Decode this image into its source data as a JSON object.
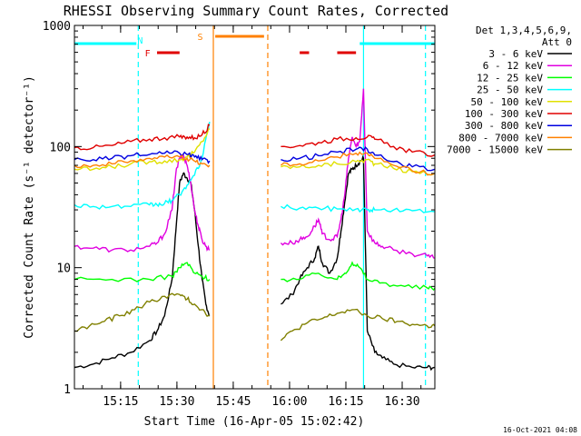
{
  "chart_data": {
    "type": "line",
    "title": "RHESSI Observing Summary Count Rates, Corrected",
    "xlabel": "Start Time (16-Apr-05 15:02:42)",
    "ylabel": "Corrected Count Rate (s⁻¹ detector⁻¹)",
    "yscale": "log",
    "ylim": [
      1,
      1000
    ],
    "xlim_minutes": [
      0,
      96
    ],
    "x_ticks": [
      {
        "minute": 12.3,
        "label": "15:15"
      },
      {
        "minute": 27.3,
        "label": "15:30"
      },
      {
        "minute": 42.3,
        "label": "15:45"
      },
      {
        "minute": 57.3,
        "label": "16:00"
      },
      {
        "minute": 72.3,
        "label": "16:15"
      },
      {
        "minute": 87.3,
        "label": "16:30"
      }
    ],
    "y_ticks": [
      {
        "value": 1,
        "label": "1"
      },
      {
        "value": 10,
        "label": "10"
      },
      {
        "value": 100,
        "label": "100"
      },
      {
        "value": 1000,
        "label": "1000"
      }
    ],
    "legend_header": "Det 1,3,4,5,6,9,",
    "legend_header2": "Att 0",
    "legend_position": "right",
    "series": [
      {
        "name": "3 - 6 keV",
        "color": "#000000",
        "x": [
          0,
          5,
          10,
          15,
          20,
          22,
          24,
          26,
          27,
          28,
          29,
          30,
          31,
          32,
          33,
          34,
          35,
          36,
          55,
          58,
          60,
          62,
          64,
          65,
          66,
          68,
          70,
          71,
          72,
          73,
          74,
          75,
          76,
          77,
          78,
          80,
          82,
          85,
          90,
          94,
          96
        ],
        "y": [
          1.5,
          1.6,
          1.8,
          2.0,
          2.5,
          3,
          4,
          8,
          20,
          50,
          60,
          55,
          50,
          30,
          15,
          8,
          5,
          4,
          5,
          6,
          8,
          10,
          12,
          15,
          11,
          9,
          12,
          20,
          35,
          60,
          65,
          70,
          75,
          80,
          3,
          2,
          1.8,
          1.6,
          1.5,
          1.5,
          1.5
        ]
      },
      {
        "name": "6 - 12 keV",
        "color": "#e000e0",
        "x": [
          0,
          5,
          10,
          15,
          20,
          22,
          24,
          26,
          27,
          28,
          29,
          30,
          31,
          32,
          33,
          34,
          35,
          36,
          55,
          58,
          60,
          62,
          64,
          65,
          66,
          68,
          70,
          71,
          72,
          73,
          74,
          75,
          76,
          77,
          78,
          80,
          82,
          85,
          90,
          94,
          96
        ],
        "y": [
          15,
          14.5,
          14,
          14,
          15,
          16,
          19,
          30,
          60,
          80,
          85,
          70,
          50,
          30,
          22,
          17,
          15,
          14,
          16,
          16,
          17,
          18,
          22,
          25,
          19,
          17,
          18,
          25,
          40,
          80,
          120,
          100,
          110,
          300,
          20,
          16,
          15,
          14,
          13,
          12.5,
          12
        ]
      },
      {
        "name": "12 - 25 keV",
        "color": "#00ff00",
        "x": [
          0,
          10,
          20,
          26,
          28,
          30,
          32,
          34,
          36,
          55,
          60,
          65,
          70,
          72,
          74,
          76,
          78,
          82,
          88,
          94,
          96
        ],
        "y": [
          8,
          8,
          8,
          8.5,
          10,
          11,
          9,
          8.5,
          8,
          8,
          8,
          9,
          8,
          9,
          11,
          10,
          8,
          7.5,
          7,
          6.8,
          6.8
        ]
      },
      {
        "name": "25 - 50 keV",
        "color": "#00ffff",
        "x": [
          0,
          5,
          10,
          15,
          20,
          22,
          24,
          26,
          28,
          30,
          32,
          34,
          36,
          55,
          60,
          65,
          70,
          75,
          78,
          80,
          85,
          90,
          96
        ],
        "y": [
          33,
          32,
          32,
          32,
          33,
          33,
          34,
          36,
          40,
          48,
          58,
          80,
          160,
          32,
          31,
          31,
          30.5,
          30.5,
          30,
          30,
          30,
          29.5,
          29
        ]
      },
      {
        "name": "50 - 100 keV",
        "color": "#e0e000",
        "x": [
          0,
          5,
          10,
          15,
          20,
          24,
          28,
          30,
          32,
          34,
          36,
          55,
          60,
          65,
          70,
          75,
          78,
          80,
          85,
          90,
          96
        ],
        "y": [
          65,
          65,
          68,
          72,
          75,
          76,
          78,
          82,
          90,
          110,
          140,
          68,
          68,
          70,
          72,
          75,
          78,
          72,
          66,
          62,
          60
        ]
      },
      {
        "name": "100 - 300 keV",
        "color": "#e00000",
        "x": [
          0,
          5,
          10,
          15,
          20,
          24,
          28,
          30,
          32,
          34,
          36,
          55,
          60,
          65,
          70,
          75,
          78,
          80,
          85,
          90,
          96
        ],
        "y": [
          98,
          98,
          102,
          110,
          115,
          118,
          120,
          120,
          118,
          125,
          150,
          100,
          102,
          108,
          115,
          118,
          120,
          115,
          100,
          90,
          85
        ]
      },
      {
        "name": "300 - 800 keV",
        "color": "#0000e0",
        "x": [
          0,
          5,
          10,
          15,
          20,
          24,
          28,
          30,
          32,
          34,
          36,
          55,
          60,
          65,
          70,
          75,
          78,
          80,
          85,
          90,
          96
        ],
        "y": [
          78,
          78,
          80,
          84,
          86,
          88,
          88,
          86,
          82,
          78,
          76,
          78,
          80,
          84,
          90,
          95,
          95,
          85,
          75,
          68,
          65
        ]
      },
      {
        "name": "800 - 7000 keV",
        "color": "#ff8000",
        "x": [
          0,
          5,
          10,
          15,
          20,
          24,
          28,
          30,
          32,
          34,
          36,
          55,
          60,
          65,
          70,
          75,
          78,
          80,
          85,
          90,
          96
        ],
        "y": [
          70,
          70,
          72,
          76,
          80,
          82,
          82,
          80,
          76,
          72,
          70,
          70,
          72,
          76,
          82,
          88,
          88,
          80,
          70,
          63,
          60
        ]
      },
      {
        "name": "7000 - 15000 keV",
        "color": "#808000",
        "x": [
          0,
          4,
          8,
          12,
          16,
          20,
          24,
          28,
          30,
          32,
          34,
          36,
          55,
          58,
          62,
          66,
          70,
          74,
          78,
          82,
          86,
          90,
          94,
          96
        ],
        "y": [
          3,
          3.3,
          3.6,
          4,
          4.5,
          5.2,
          5.8,
          6,
          5.5,
          5,
          4.5,
          4,
          2.5,
          3,
          3.5,
          3.8,
          4.2,
          4.5,
          4,
          3.8,
          3.6,
          3.4,
          3.3,
          3.3
        ]
      }
    ],
    "annotations": [
      {
        "text": "N",
        "color": "#00ffff",
        "minute": 17.5
      },
      {
        "text": "F",
        "color": "#e00000",
        "minute": 19.5
      },
      {
        "text": "S",
        "color": "#ff8000",
        "minute": 33.5
      }
    ],
    "state_bars": [
      {
        "color": "#00ffff",
        "start": 0,
        "end": 16.5
      },
      {
        "color": "#00ffff",
        "start": 76,
        "end": 96
      },
      {
        "color": "#e00000",
        "start": 22,
        "end": 28
      },
      {
        "color": "#e00000",
        "start": 60,
        "end": 62.5
      },
      {
        "color": "#e00000",
        "start": 70,
        "end": 75
      },
      {
        "color": "#ff8000",
        "start": 37.5,
        "end": 50.5
      }
    ],
    "vlines": [
      {
        "color": "#00ffff",
        "minute": 17,
        "style": "dashed"
      },
      {
        "color": "#00ffff",
        "minute": 77,
        "style": "solid"
      },
      {
        "color": "#00ffff",
        "minute": 93.5,
        "style": "dashed"
      },
      {
        "color": "#ff8000",
        "minute": 37,
        "style": "solid"
      },
      {
        "color": "#ff8000",
        "minute": 51.5,
        "style": "dashed"
      }
    ],
    "data_gaps": [
      {
        "start": 36.5,
        "end": 52.5
      }
    ],
    "footer_date": "16-Oct-2021 04:08"
  }
}
